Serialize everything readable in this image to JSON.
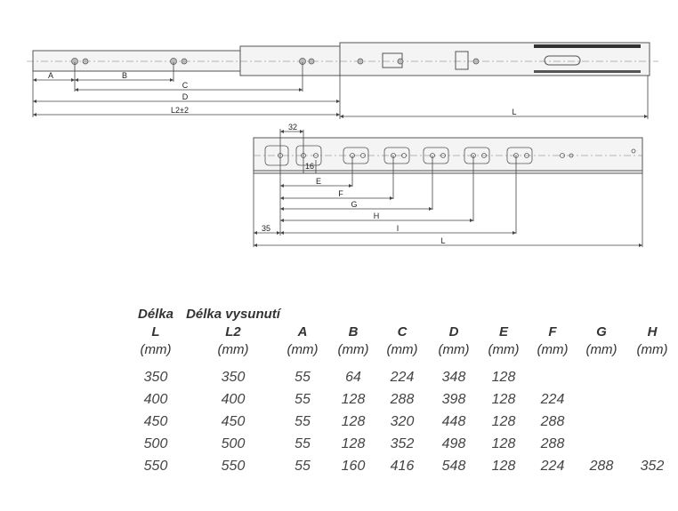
{
  "drawing_top": {
    "labels": {
      "A": "A",
      "B": "B",
      "C": "C",
      "D": "D",
      "L2": "L2±2",
      "L": "L"
    }
  },
  "drawing_bottom": {
    "labels": {
      "d32": "32",
      "d16": "16",
      "E": "E",
      "F": "F",
      "G": "G",
      "H": "H",
      "I": "I",
      "d35": "35",
      "L": "L"
    }
  },
  "table": {
    "headers": [
      {
        "title": "Délka",
        "symbol": "L",
        "unit": "(mm)"
      },
      {
        "title": "Délka vysunutí",
        "symbol": "L2",
        "unit": "(mm)"
      },
      {
        "title": "",
        "symbol": "A",
        "unit": "(mm)"
      },
      {
        "title": "",
        "symbol": "B",
        "unit": "(mm)"
      },
      {
        "title": "",
        "symbol": "C",
        "unit": "(mm)"
      },
      {
        "title": "",
        "symbol": "D",
        "unit": "(mm)"
      },
      {
        "title": "",
        "symbol": "E",
        "unit": "(mm)"
      },
      {
        "title": "",
        "symbol": "F",
        "unit": "(mm)"
      },
      {
        "title": "",
        "symbol": "G",
        "unit": "(mm)"
      },
      {
        "title": "",
        "symbol": "H",
        "unit": "(mm)"
      }
    ],
    "rows": [
      [
        "350",
        "350",
        "55",
        "64",
        "224",
        "348",
        "128",
        "",
        "",
        ""
      ],
      [
        "400",
        "400",
        "55",
        "128",
        "288",
        "398",
        "128",
        "224",
        "",
        ""
      ],
      [
        "450",
        "450",
        "55",
        "128",
        "320",
        "448",
        "128",
        "288",
        "",
        ""
      ],
      [
        "500",
        "500",
        "55",
        "128",
        "352",
        "498",
        "128",
        "288",
        "",
        ""
      ],
      [
        "550",
        "550",
        "55",
        "160",
        "416",
        "548",
        "128",
        "224",
        "288",
        "352"
      ]
    ]
  }
}
